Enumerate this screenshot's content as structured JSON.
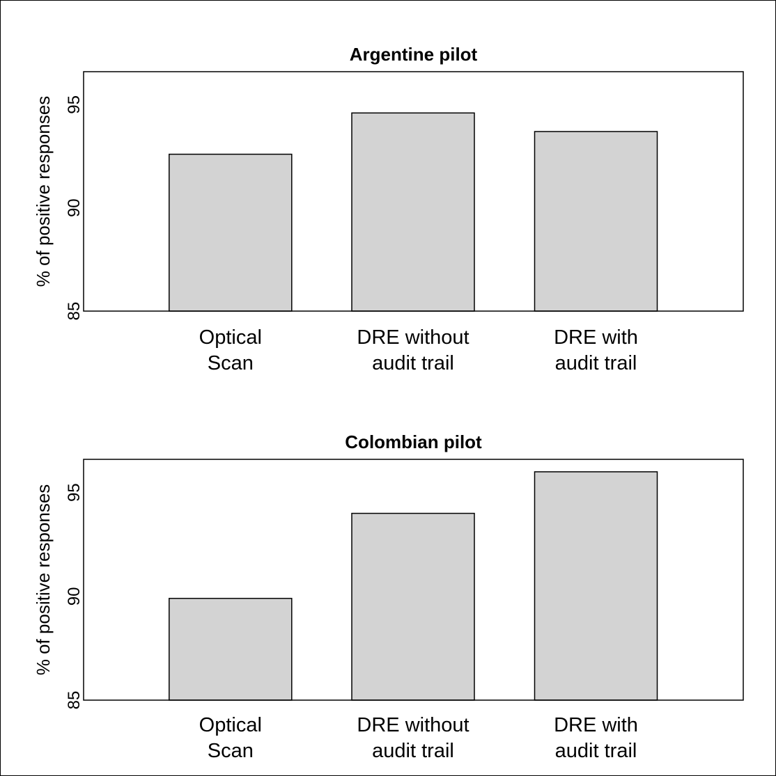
{
  "chart_data": [
    {
      "type": "bar",
      "title": "Argentine pilot",
      "ylabel": "% of positive responses",
      "xlabel": "",
      "categories": [
        [
          "Optical",
          "Scan"
        ],
        [
          "DRE without",
          "audit trail"
        ],
        [
          "DRE with",
          "audit trail"
        ]
      ],
      "values": [
        92.6,
        94.6,
        93.7
      ],
      "ylim": [
        85,
        96.6
      ],
      "yticks": [
        "85",
        "90",
        "95"
      ],
      "grid": false
    },
    {
      "type": "bar",
      "title": "Colombian pilot",
      "ylabel": "% of positive responses",
      "xlabel": "",
      "categories": [
        [
          "Optical",
          "Scan"
        ],
        [
          "DRE without",
          "audit trail"
        ],
        [
          "DRE with",
          "audit trail"
        ]
      ],
      "values": [
        89.9,
        94.0,
        96.0
      ],
      "ylim": [
        85,
        96.6
      ],
      "yticks": [
        "85",
        "90",
        "95"
      ],
      "grid": false
    }
  ],
  "style": {
    "bar_fill": "#d3d3d3",
    "stroke": "#000000",
    "background": "#ffffff"
  }
}
